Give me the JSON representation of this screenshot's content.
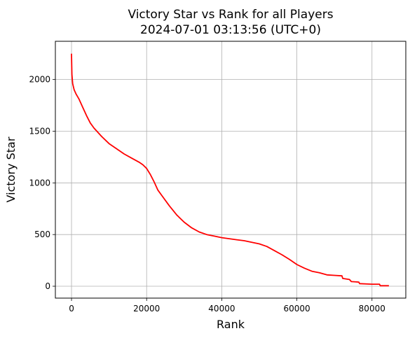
{
  "chart_data": {
    "type": "line",
    "title": "Victory Star vs Rank for all Players",
    "subtitle": "2024-07-01 03:13:56 (UTC+0)",
    "xlabel": "Rank",
    "ylabel": "Victory Star",
    "xlim": [
      -4300,
      89000
    ],
    "ylim": [
      -115,
      2370
    ],
    "xticks": [
      0,
      20000,
      40000,
      60000,
      80000
    ],
    "xtick_labels": [
      "0",
      "20000",
      "40000",
      "60000",
      "80000"
    ],
    "yticks": [
      0,
      500,
      1000,
      1500,
      2000
    ],
    "ytick_labels": [
      "0",
      "500",
      "1000",
      "1500",
      "2000"
    ],
    "grid": true,
    "legend": "none",
    "series": [
      {
        "color": "#ff0000",
        "x": [
          0,
          100,
          300,
          700,
          1200,
          2000,
          3000,
          4000,
          5000,
          6000,
          8000,
          10000,
          12000,
          14000,
          16000,
          18000,
          19000,
          20000,
          21000,
          22000,
          23000,
          24000,
          26000,
          28000,
          30000,
          32000,
          34000,
          36000,
          38000,
          40000,
          42000,
          44000,
          46000,
          48000,
          50000,
          52000,
          54000,
          56000,
          58000,
          60000,
          62000,
          64000,
          66000,
          68000,
          70000,
          72000,
          72200,
          74000,
          74500,
          76500,
          76700,
          80000,
          82000,
          82200,
          84500
        ],
        "y": [
          2250,
          2050,
          1960,
          1900,
          1860,
          1810,
          1730,
          1650,
          1580,
          1530,
          1450,
          1380,
          1330,
          1280,
          1240,
          1200,
          1175,
          1140,
          1080,
          1010,
          930,
          880,
          780,
          690,
          620,
          565,
          525,
          500,
          485,
          470,
          460,
          450,
          440,
          425,
          410,
          385,
          345,
          305,
          260,
          210,
          175,
          145,
          130,
          110,
          105,
          100,
          75,
          65,
          45,
          40,
          25,
          20,
          20,
          5,
          5
        ]
      }
    ]
  }
}
